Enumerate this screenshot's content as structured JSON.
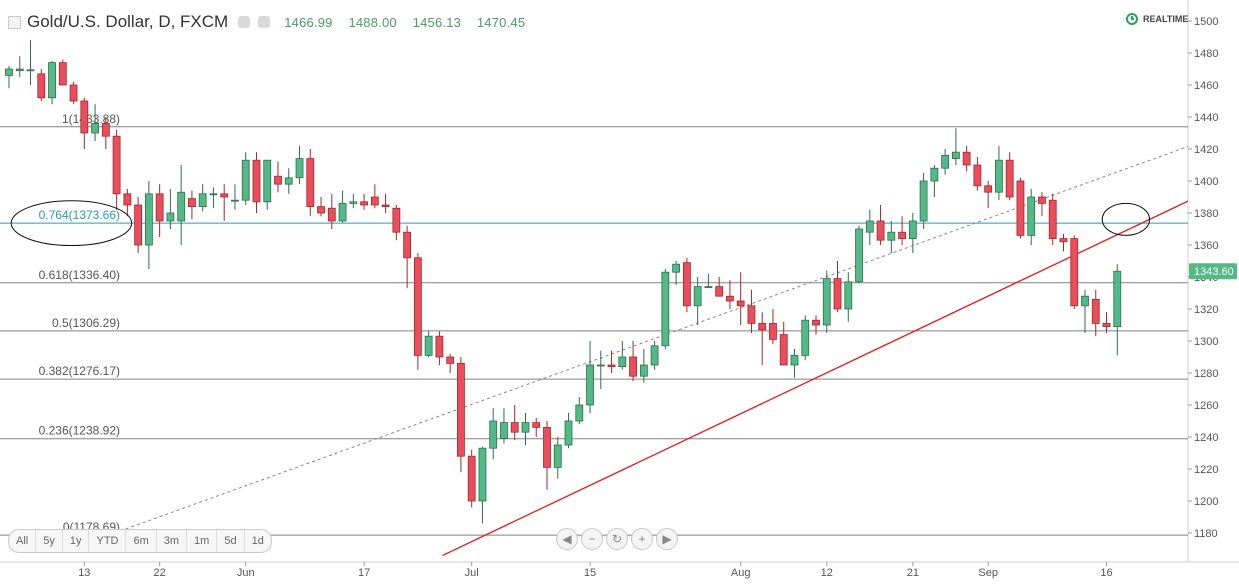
{
  "header": {
    "symbol_title": "Gold/U.S. Dollar, D, FXCM",
    "ohlc": [
      "1466.99",
      "1488.00",
      "1456.13",
      "1470.45"
    ],
    "realtime_label": "REALTIME"
  },
  "ranges": [
    "All",
    "5y",
    "1y",
    "YTD",
    "6m",
    "3m",
    "1m",
    "5d",
    "1d"
  ],
  "zoom_buttons": [
    {
      "name": "scroll-left-icon",
      "glyph": "◀"
    },
    {
      "name": "zoom-out-icon",
      "glyph": "−"
    },
    {
      "name": "reset-icon",
      "glyph": "↻"
    },
    {
      "name": "zoom-in-icon",
      "glyph": "+"
    },
    {
      "name": "scroll-right-icon",
      "glyph": "▶"
    }
  ],
  "chart_data": {
    "type": "candlestick",
    "ylim": [
      1170,
      1505
    ],
    "yticks": [
      1180,
      1200,
      1220,
      1240,
      1260,
      1280,
      1300,
      1320,
      1340,
      1360,
      1380,
      1400,
      1420,
      1440,
      1460,
      1480,
      1500
    ],
    "xticks": [
      {
        "label": "13",
        "i": 7
      },
      {
        "label": "22",
        "i": 14
      },
      {
        "label": "Jun",
        "i": 22
      },
      {
        "label": "17",
        "i": 33
      },
      {
        "label": "Jul",
        "i": 43
      },
      {
        "label": "15",
        "i": 54
      },
      {
        "label": "Aug",
        "i": 68
      },
      {
        "label": "12",
        "i": 76
      },
      {
        "label": "21",
        "i": 84
      },
      {
        "label": "Sep",
        "i": 91
      },
      {
        "label": "16",
        "i": 102
      }
    ],
    "candles": [
      [
        1466.0,
        1472.0,
        1458.0,
        1470.0
      ],
      [
        1469.0,
        1478.0,
        1465.0,
        1470.0
      ],
      [
        1469.0,
        1488.0,
        1460.0,
        1469.5
      ],
      [
        1467.0,
        1470.0,
        1450.0,
        1452.0
      ],
      [
        1452.0,
        1475.0,
        1448.0,
        1474.0
      ],
      [
        1474.0,
        1476.0,
        1460.0,
        1460.0
      ],
      [
        1460.0,
        1462.0,
        1448.0,
        1450.0
      ],
      [
        1450.0,
        1452.0,
        1420.0,
        1430.0
      ],
      [
        1430.0,
        1448.0,
        1425.0,
        1436.0
      ],
      [
        1436.0,
        1440.0,
        1420.0,
        1428.0
      ],
      [
        1428.0,
        1432.0,
        1382.0,
        1392.0
      ],
      [
        1392.0,
        1395.0,
        1378.0,
        1385.0
      ],
      [
        1385.0,
        1390.0,
        1355.0,
        1360.0
      ],
      [
        1360.0,
        1400.0,
        1345.0,
        1392.0
      ],
      [
        1392.0,
        1398.0,
        1365.0,
        1375.0
      ],
      [
        1375.0,
        1395.0,
        1370.0,
        1380.0
      ],
      [
        1375.0,
        1410.0,
        1360.0,
        1393.0
      ],
      [
        1389.0,
        1394.0,
        1376.0,
        1384.0
      ],
      [
        1384.0,
        1398.0,
        1381.0,
        1392.0
      ],
      [
        1392.0,
        1396.0,
        1383.0,
        1392.0
      ],
      [
        1392.0,
        1398.0,
        1375.0,
        1390.0
      ],
      [
        1388.0,
        1398.0,
        1382.0,
        1388.0
      ],
      [
        1388.0,
        1418.0,
        1385.0,
        1413.0
      ],
      [
        1413.0,
        1418.0,
        1380.0,
        1387.0
      ],
      [
        1387.0,
        1410.0,
        1382.0,
        1413.0
      ],
      [
        1403.0,
        1412.0,
        1393.0,
        1398.0
      ],
      [
        1398.0,
        1408.0,
        1392.0,
        1402.0
      ],
      [
        1402.0,
        1422.0,
        1398.0,
        1414.0
      ],
      [
        1414.0,
        1420.0,
        1378.0,
        1384.0
      ],
      [
        1384.0,
        1390.0,
        1378.0,
        1380.0
      ],
      [
        1383.0,
        1392.0,
        1370.0,
        1375.0
      ],
      [
        1375.0,
        1394.0,
        1374.0,
        1386.0
      ],
      [
        1386.0,
        1392.0,
        1383.0,
        1387.0
      ],
      [
        1387.0,
        1392.0,
        1382.0,
        1385.0
      ],
      [
        1390.0,
        1398.0,
        1383.0,
        1385.0
      ],
      [
        1385.0,
        1392.0,
        1380.0,
        1384.0
      ],
      [
        1383.0,
        1385.0,
        1363.0,
        1368.0
      ],
      [
        1368.0,
        1372.0,
        1333.0,
        1352.0
      ],
      [
        1352.0,
        1355.0,
        1282.0,
        1291.0
      ],
      [
        1291.0,
        1306.0,
        1290.0,
        1303.0
      ],
      [
        1303.0,
        1306.0,
        1285.0,
        1290.0
      ],
      [
        1290.0,
        1292.0,
        1280.0,
        1286.0
      ],
      [
        1286.0,
        1290.0,
        1218.0,
        1228.0
      ],
      [
        1228.0,
        1232.0,
        1196.0,
        1200.0
      ],
      [
        1200.0,
        1234.0,
        1186.0,
        1233.0
      ],
      [
        1233.0,
        1258.0,
        1226.0,
        1250.0
      ],
      [
        1239.0,
        1258.0,
        1236.0,
        1249.0
      ],
      [
        1249.0,
        1260.0,
        1238.0,
        1243.0
      ],
      [
        1243.0,
        1255.0,
        1235.0,
        1249.0
      ],
      [
        1249.0,
        1252.0,
        1240.0,
        1246.0
      ],
      [
        1246.0,
        1250.0,
        1207.0,
        1221.0
      ],
      [
        1221.0,
        1240.0,
        1214.0,
        1235.0
      ],
      [
        1235.0,
        1255.0,
        1233.0,
        1250.0
      ],
      [
        1250.0,
        1265.0,
        1248.0,
        1260.0
      ],
      [
        1260.0,
        1300.0,
        1255.0,
        1285.0
      ],
      [
        1285.0,
        1294.0,
        1270.0,
        1285.0
      ],
      [
        1285.0,
        1294.0,
        1280.0,
        1284.0
      ],
      [
        1284.0,
        1300.0,
        1282.0,
        1290.0
      ],
      [
        1290.0,
        1300.0,
        1275.0,
        1278.0
      ],
      [
        1278.0,
        1295.0,
        1274.0,
        1285.0
      ],
      [
        1285.0,
        1300.0,
        1282.0,
        1297.0
      ],
      [
        1297.0,
        1345.0,
        1295.0,
        1343.0
      ],
      [
        1343.0,
        1350.0,
        1335.0,
        1348.0
      ],
      [
        1349.0,
        1352.0,
        1318.0,
        1322.0
      ],
      [
        1322.0,
        1340.0,
        1310.0,
        1334.0
      ],
      [
        1334.0,
        1342.0,
        1333.0,
        1334.0
      ],
      [
        1334.0,
        1340.0,
        1328.0,
        1328.0
      ],
      [
        1328.0,
        1338.0,
        1320.0,
        1325.0
      ],
      [
        1325.0,
        1343.0,
        1310.0,
        1322.0
      ],
      [
        1322.0,
        1332.0,
        1305.0,
        1311.0
      ],
      [
        1311.0,
        1318.0,
        1285.0,
        1307.0
      ],
      [
        1311.0,
        1320.0,
        1298.0,
        1301.0
      ],
      [
        1304.0,
        1312.0,
        1285.0,
        1285.0
      ],
      [
        1285.0,
        1295.0,
        1277.0,
        1291.0
      ],
      [
        1291.0,
        1316.0,
        1288.0,
        1313.0
      ],
      [
        1313.0,
        1316.0,
        1304.0,
        1310.0
      ],
      [
        1310.0,
        1344.0,
        1305.0,
        1339.0
      ],
      [
        1339.0,
        1350.0,
        1318.0,
        1320.0
      ],
      [
        1320.0,
        1343.0,
        1312.0,
        1337.0
      ],
      [
        1337.0,
        1372.0,
        1336.0,
        1370.0
      ],
      [
        1368.0,
        1382.0,
        1360.0,
        1375.0
      ],
      [
        1375.0,
        1385.0,
        1360.0,
        1363.0
      ],
      [
        1363.0,
        1375.0,
        1355.0,
        1368.0
      ],
      [
        1368.0,
        1378.0,
        1360.0,
        1364.0
      ],
      [
        1364.0,
        1380.0,
        1355.0,
        1375.0
      ],
      [
        1375.0,
        1405.0,
        1370.0,
        1400.0
      ],
      [
        1400.0,
        1410.0,
        1390.0,
        1408.0
      ],
      [
        1408.0,
        1420.0,
        1404.0,
        1416.0
      ],
      [
        1414.0,
        1433.0,
        1410.0,
        1418.0
      ],
      [
        1418.0,
        1422.0,
        1406.0,
        1410.0
      ],
      [
        1410.0,
        1415.0,
        1394.0,
        1397.0
      ],
      [
        1397.0,
        1400.0,
        1383.0,
        1393.0
      ],
      [
        1393.0,
        1422.0,
        1388.0,
        1413.0
      ],
      [
        1413.0,
        1418.0,
        1388.0,
        1390.0
      ],
      [
        1400.0,
        1402.0,
        1364.0,
        1366.0
      ],
      [
        1366.0,
        1395.0,
        1360.0,
        1390.0
      ],
      [
        1390.0,
        1393.0,
        1378.0,
        1386.0
      ],
      [
        1388.0,
        1392.0,
        1360.0,
        1364.0
      ],
      [
        1364.0,
        1367.0,
        1356.0,
        1362.0
      ],
      [
        1364.0,
        1366.0,
        1320.0,
        1322.0
      ],
      [
        1322.0,
        1332.0,
        1305.0,
        1328.0
      ],
      [
        1326.0,
        1332.0,
        1303.0,
        1311.0
      ],
      [
        1311.0,
        1318.0,
        1305.0,
        1309.0
      ],
      [
        1309.0,
        1348.0,
        1291.0,
        1343.6
      ]
    ],
    "fib_levels": [
      {
        "label": "1(1433.88)",
        "value": 1433.88,
        "color": "#808080"
      },
      {
        "label": "0.764(1373.66)",
        "value": 1373.66,
        "color": "#2a9bb7"
      },
      {
        "label": "0.618(1336.40)",
        "value": 1336.4,
        "color": "#808080"
      },
      {
        "label": "0.5(1306.29)",
        "value": 1306.29,
        "color": "#808080"
      },
      {
        "label": "0.382(1276.17)",
        "value": 1276.17,
        "color": "#808080"
      },
      {
        "label": "0.236(1238.92)",
        "value": 1238.92,
        "color": "#808080"
      },
      {
        "label": "0(1178.69)",
        "value": 1178.69,
        "color": "#808080"
      }
    ],
    "trendlines": [
      {
        "name": "support",
        "color": "#e31a1c",
        "dash": false,
        "from": {
          "i": 40.3,
          "v": 1166
        },
        "to": {
          "i": 111.0,
          "v": 1392
        }
      },
      {
        "name": "channel",
        "color": "#888888",
        "dash": true,
        "from": {
          "i": 9.8,
          "v": 1180
        },
        "to": {
          "i": 111.0,
          "v": 1425
        }
      }
    ],
    "ellipses": [
      {
        "i": 5.8,
        "v": 1373.66,
        "ri": 5.6,
        "rv": 14
      },
      {
        "i": 103.8,
        "v": 1376,
        "ri": 2.2,
        "rv": 10
      }
    ],
    "last_price": "1343.60",
    "colors": {
      "up": "#53b987",
      "down": "#eb4d5c",
      "up_border": "#2f6e4b",
      "down_border": "#9c2a2a"
    }
  }
}
